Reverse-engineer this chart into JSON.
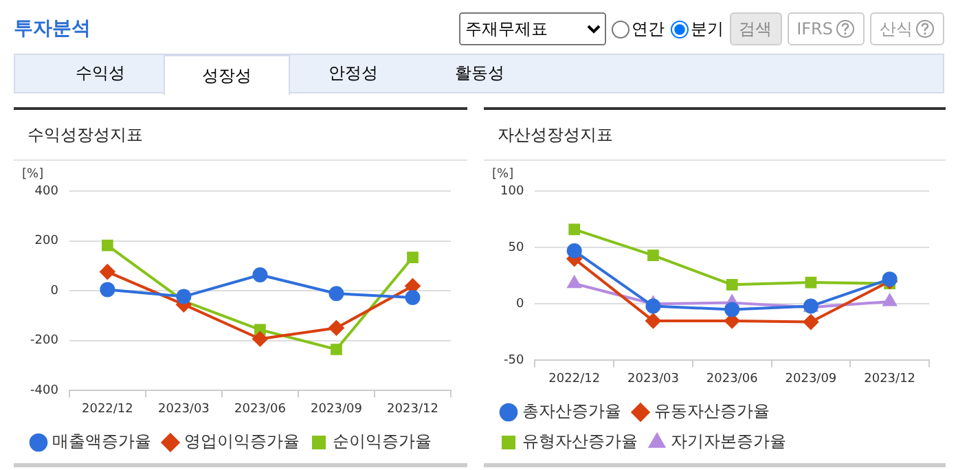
{
  "chart_data": [
    {
      "type": "other",
      "title": "투자분석",
      "annotations": [
        "주재무제표",
        "연간",
        "분기",
        "검색",
        "IFRS",
        "산식",
        "수익성",
        "성장성",
        "안정성",
        "활동성"
      ]
    },
    {
      "type": "line",
      "title": "수익성장성지표",
      "ylabel": "[%]",
      "categories": [
        "2022/12",
        "2023/03",
        "2023/06",
        "2023/09",
        "2023/12"
      ],
      "ylim": [
        -400,
        400
      ],
      "yticks": [
        -400,
        -200,
        0,
        200,
        400
      ],
      "grid": "y",
      "legend": "bottom",
      "series": [
        {
          "name": "매출액증가율",
          "color": "#2f6fdc",
          "marker": "circle",
          "values": [
            5,
            -23,
            64,
            -11,
            -27
          ]
        },
        {
          "name": "영업이익증가율",
          "color": "#d9400f",
          "marker": "diamond",
          "values": [
            76,
            -55,
            -193,
            -149,
            19
          ]
        },
        {
          "name": "순이익증가율",
          "color": "#86c21a",
          "marker": "square",
          "values": [
            182,
            -41,
            -156,
            -235,
            134
          ]
        }
      ]
    },
    {
      "type": "line",
      "title": "자산성장성지표",
      "ylabel": "[%]",
      "categories": [
        "2022/12",
        "2023/03",
        "2023/06",
        "2023/09",
        "2023/12"
      ],
      "ylim": [
        -50,
        100
      ],
      "yticks": [
        -50,
        0,
        50,
        100
      ],
      "grid": "y",
      "legend": "bottom",
      "series": [
        {
          "name": "총자산증가율",
          "color": "#2f6fdc",
          "marker": "circle",
          "values": [
            47,
            -2,
            -5,
            -2,
            22
          ]
        },
        {
          "name": "유동자산증가율",
          "color": "#d9400f",
          "marker": "diamond",
          "values": [
            40,
            -15,
            -15,
            -16,
            20
          ]
        },
        {
          "name": "유형자산증가율",
          "color": "#86c21a",
          "marker": "square",
          "values": [
            66,
            43,
            17,
            19,
            18
          ]
        },
        {
          "name": "자기자본증가율",
          "color": "#b48ae0",
          "marker": "triangle",
          "values": [
            18,
            0,
            1,
            -3,
            2
          ]
        }
      ]
    }
  ]
}
